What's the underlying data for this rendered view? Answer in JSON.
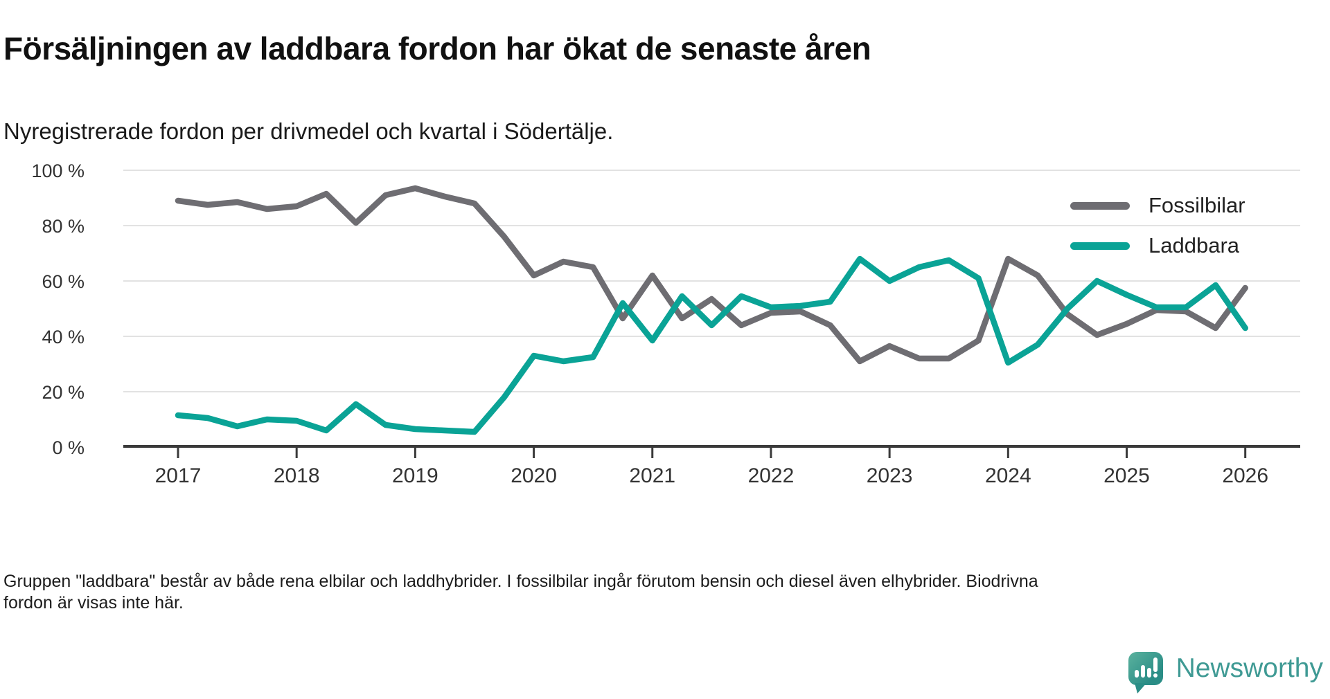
{
  "title": "Försäljningen av laddbara fordon har ökat de senaste åren",
  "subtitle": "Nyregistrerade fordon per drivmedel och kvartal i Södertälje.",
  "footnote": "Gruppen \"laddbara\" består av både rena elbilar och laddhybrider. I fossilbilar ingår förutom bensin och diesel även elhybrider. Biodrivna fordon är visas inte här.",
  "brand": {
    "name": "Newsworthy"
  },
  "y_axis": {
    "ticks": [
      {
        "label": "100 %",
        "value": 100
      },
      {
        "label": "80 %",
        "value": 80
      },
      {
        "label": "60 %",
        "value": 60
      },
      {
        "label": "40 %",
        "value": 40
      },
      {
        "label": "20 %",
        "value": 20
      },
      {
        "label": "0 %",
        "value": 0
      }
    ]
  },
  "x_axis": {
    "ticks": [
      {
        "label": "2017",
        "quarter_index": 0
      },
      {
        "label": "2018",
        "quarter_index": 4
      },
      {
        "label": "2019",
        "quarter_index": 8
      },
      {
        "label": "2020",
        "quarter_index": 12
      },
      {
        "label": "2021",
        "quarter_index": 16
      },
      {
        "label": "2022",
        "quarter_index": 20
      },
      {
        "label": "2023",
        "quarter_index": 24
      },
      {
        "label": "2024",
        "quarter_index": 28
      },
      {
        "label": "2025",
        "quarter_index": 32
      },
      {
        "label": "2026",
        "quarter_index": 36
      }
    ]
  },
  "chart_data": {
    "type": "line",
    "unit": "percent",
    "ylim": [
      0,
      100
    ],
    "grid": "horizontal",
    "legend_position": "top-right",
    "quarters": [
      "2017Q1",
      "2017Q2",
      "2017Q3",
      "2017Q4",
      "2018Q1",
      "2018Q2",
      "2018Q3",
      "2018Q4",
      "2019Q1",
      "2019Q2",
      "2019Q3",
      "2019Q4",
      "2020Q1",
      "2020Q2",
      "2020Q3",
      "2020Q4",
      "2021Q1",
      "2021Q2",
      "2021Q3",
      "2021Q4",
      "2022Q1",
      "2022Q2",
      "2022Q3",
      "2022Q4",
      "2023Q1",
      "2023Q2",
      "2023Q3",
      "2023Q4",
      "2024Q1",
      "2024Q2",
      "2024Q3",
      "2024Q4",
      "2025Q1",
      "2025Q2",
      "2025Q3",
      "2025Q4",
      "2026Q1"
    ],
    "series": [
      {
        "name": "Fossilbilar",
        "color": "#6e6d72",
        "values": [
          89,
          87.5,
          88.5,
          86,
          87,
          91.5,
          81,
          91,
          93.5,
          90.5,
          88,
          76,
          62,
          67,
          65,
          46.5,
          62,
          46.5,
          53.5,
          44,
          48.5,
          49,
          44,
          31,
          36.5,
          32,
          32,
          38.5,
          68,
          62,
          48,
          40.5,
          44.5,
          49.5,
          49,
          43,
          57.5
        ]
      },
      {
        "name": "Laddbara",
        "color": "#0aa396",
        "values": [
          11.5,
          10.5,
          7.5,
          10,
          9.5,
          6,
          15.5,
          8,
          6.5,
          6,
          5.5,
          18,
          33,
          31,
          32.5,
          52,
          38.5,
          54.5,
          44,
          54.5,
          50.5,
          51,
          52.5,
          68,
          60,
          65,
          67.5,
          61,
          30.5,
          37,
          50,
          60,
          55,
          50.5,
          50.5,
          58.5,
          43
        ]
      }
    ]
  }
}
